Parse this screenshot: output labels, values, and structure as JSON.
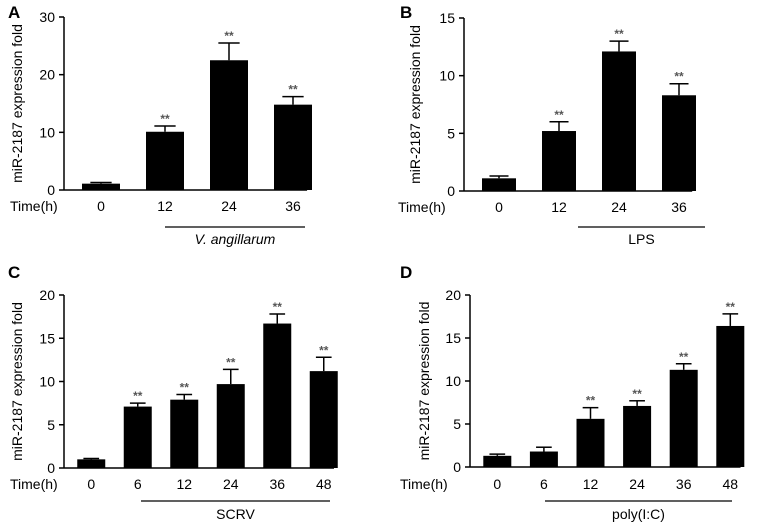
{
  "figure": {
    "time_label": "Time(h)",
    "significance_marker": "**",
    "bar_color": "#000000"
  },
  "chart_data": [
    {
      "type": "bar",
      "panel": "A",
      "ylabel": "miR-2187 expression fold",
      "categories": [
        "0",
        "12",
        "24",
        "36"
      ],
      "values": [
        1.1,
        10.1,
        22.5,
        14.8
      ],
      "errors": [
        0.2,
        1.0,
        3.0,
        1.4
      ],
      "significant": [
        false,
        true,
        true,
        true
      ],
      "ylim": [
        0,
        30
      ],
      "yticks": [
        0,
        10,
        20,
        30
      ],
      "treatment": "V. angillarum",
      "treatment_italic": true,
      "treatment_span": [
        1,
        3
      ]
    },
    {
      "type": "bar",
      "panel": "B",
      "ylabel": "miR-2187 expression fold",
      "categories": [
        "0",
        "12",
        "24",
        "36"
      ],
      "values": [
        1.1,
        5.2,
        12.1,
        8.3
      ],
      "errors": [
        0.2,
        0.8,
        0.9,
        1.0
      ],
      "significant": [
        false,
        true,
        true,
        true
      ],
      "ylim": [
        0,
        15
      ],
      "yticks": [
        0,
        5,
        10,
        15
      ],
      "treatment": "LPS",
      "treatment_italic": false,
      "treatment_span": [
        1,
        3
      ]
    },
    {
      "type": "bar",
      "panel": "C",
      "ylabel": "miR-2187 expression fold",
      "categories": [
        "0",
        "6",
        "12",
        "24",
        "36",
        "48"
      ],
      "values": [
        1.0,
        7.1,
        7.9,
        9.7,
        16.7,
        11.2
      ],
      "errors": [
        0.1,
        0.4,
        0.6,
        1.7,
        1.1,
        1.6
      ],
      "significant": [
        false,
        true,
        true,
        true,
        true,
        true
      ],
      "ylim": [
        0,
        20
      ],
      "yticks": [
        0,
        5,
        10,
        15,
        20
      ],
      "treatment": "SCRV",
      "treatment_italic": false,
      "treatment_span": [
        1,
        5
      ]
    },
    {
      "type": "bar",
      "panel": "D",
      "ylabel": "miR-2187 expression fold",
      "categories": [
        "0",
        "6",
        "12",
        "24",
        "36",
        "48"
      ],
      "values": [
        1.3,
        1.8,
        5.6,
        7.1,
        11.3,
        16.4
      ],
      "errors": [
        0.2,
        0.5,
        1.3,
        0.6,
        0.7,
        1.4
      ],
      "significant": [
        false,
        false,
        true,
        true,
        true,
        true
      ],
      "ylim": [
        0,
        20
      ],
      "yticks": [
        0,
        5,
        10,
        15,
        20
      ],
      "treatment": "poly(I:C)",
      "treatment_italic": false,
      "treatment_span": [
        1,
        5
      ]
    }
  ]
}
